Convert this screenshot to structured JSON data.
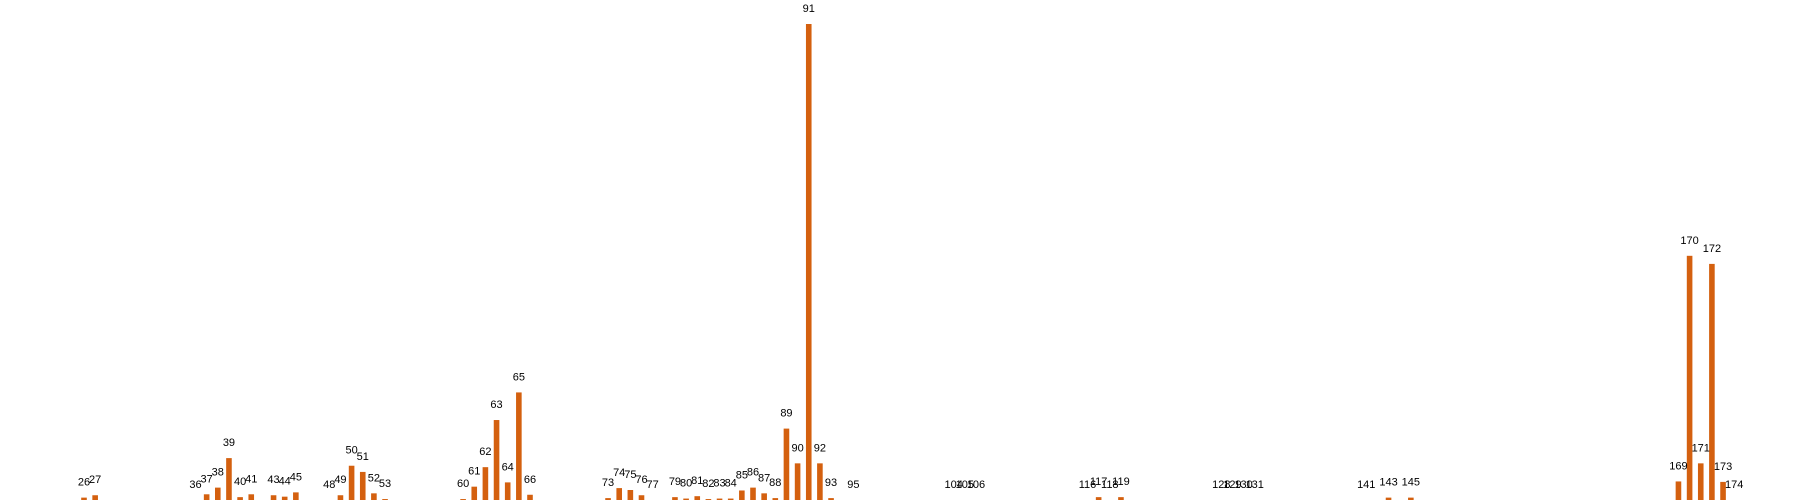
{
  "chart_data": {
    "type": "bar",
    "title": "",
    "xlabel": "",
    "ylabel": "",
    "grid": false,
    "legend": "none",
    "color": "#d4600f",
    "ylim": [
      0,
      100
    ],
    "categories": [
      26,
      27,
      36,
      37,
      38,
      39,
      40,
      41,
      43,
      44,
      45,
      48,
      49,
      50,
      51,
      52,
      53,
      60,
      61,
      62,
      63,
      64,
      65,
      66,
      73,
      74,
      75,
      76,
      77,
      79,
      80,
      81,
      82,
      83,
      84,
      85,
      86,
      87,
      88,
      89,
      90,
      91,
      92,
      93,
      95,
      104,
      105,
      106,
      116,
      117,
      118,
      119,
      128,
      129,
      130,
      131,
      141,
      143,
      145,
      169,
      170,
      171,
      172,
      173,
      174
    ],
    "labels": [
      "26",
      "27",
      "36",
      "37",
      "38",
      "39",
      "40",
      "41",
      "43",
      "44",
      "45",
      "48",
      "49",
      "50",
      "51",
      "52",
      "53",
      "60",
      "61",
      "62",
      "63",
      "64",
      "65",
      "66",
      "73",
      "74",
      "75",
      "76",
      "77",
      "79",
      "80",
      "81",
      "82",
      "83",
      "84",
      "85",
      "86",
      "87",
      "88",
      "89",
      "90",
      "91",
      "92",
      "93",
      "95",
      "104",
      "105",
      "106",
      "116",
      "117",
      "118",
      "119",
      "128",
      "129",
      "130",
      "131",
      "141",
      "143",
      "145",
      "169",
      "170",
      "171",
      "172",
      "173",
      "174"
    ],
    "values": [
      0.5,
      1.0,
      0,
      1.2,
      2.6,
      8.8,
      0.6,
      1.2,
      1.0,
      0.7,
      1.6,
      0,
      1.0,
      7.2,
      5.9,
      1.4,
      0.2,
      0.2,
      2.8,
      6.9,
      16.8,
      3.7,
      22.6,
      1.1,
      0.4,
      2.5,
      2.1,
      1.0,
      0,
      0.6,
      0.3,
      0.8,
      0.2,
      0.3,
      0.3,
      2.0,
      2.6,
      1.4,
      0.4,
      15.0,
      7.7,
      100,
      7.7,
      0.4,
      0,
      0,
      0,
      0,
      0,
      0.6,
      0,
      0.6,
      0,
      0,
      0,
      0,
      0,
      0.5,
      0.5,
      3.9,
      51.3,
      7.7,
      49.6,
      3.8,
      0
    ]
  }
}
